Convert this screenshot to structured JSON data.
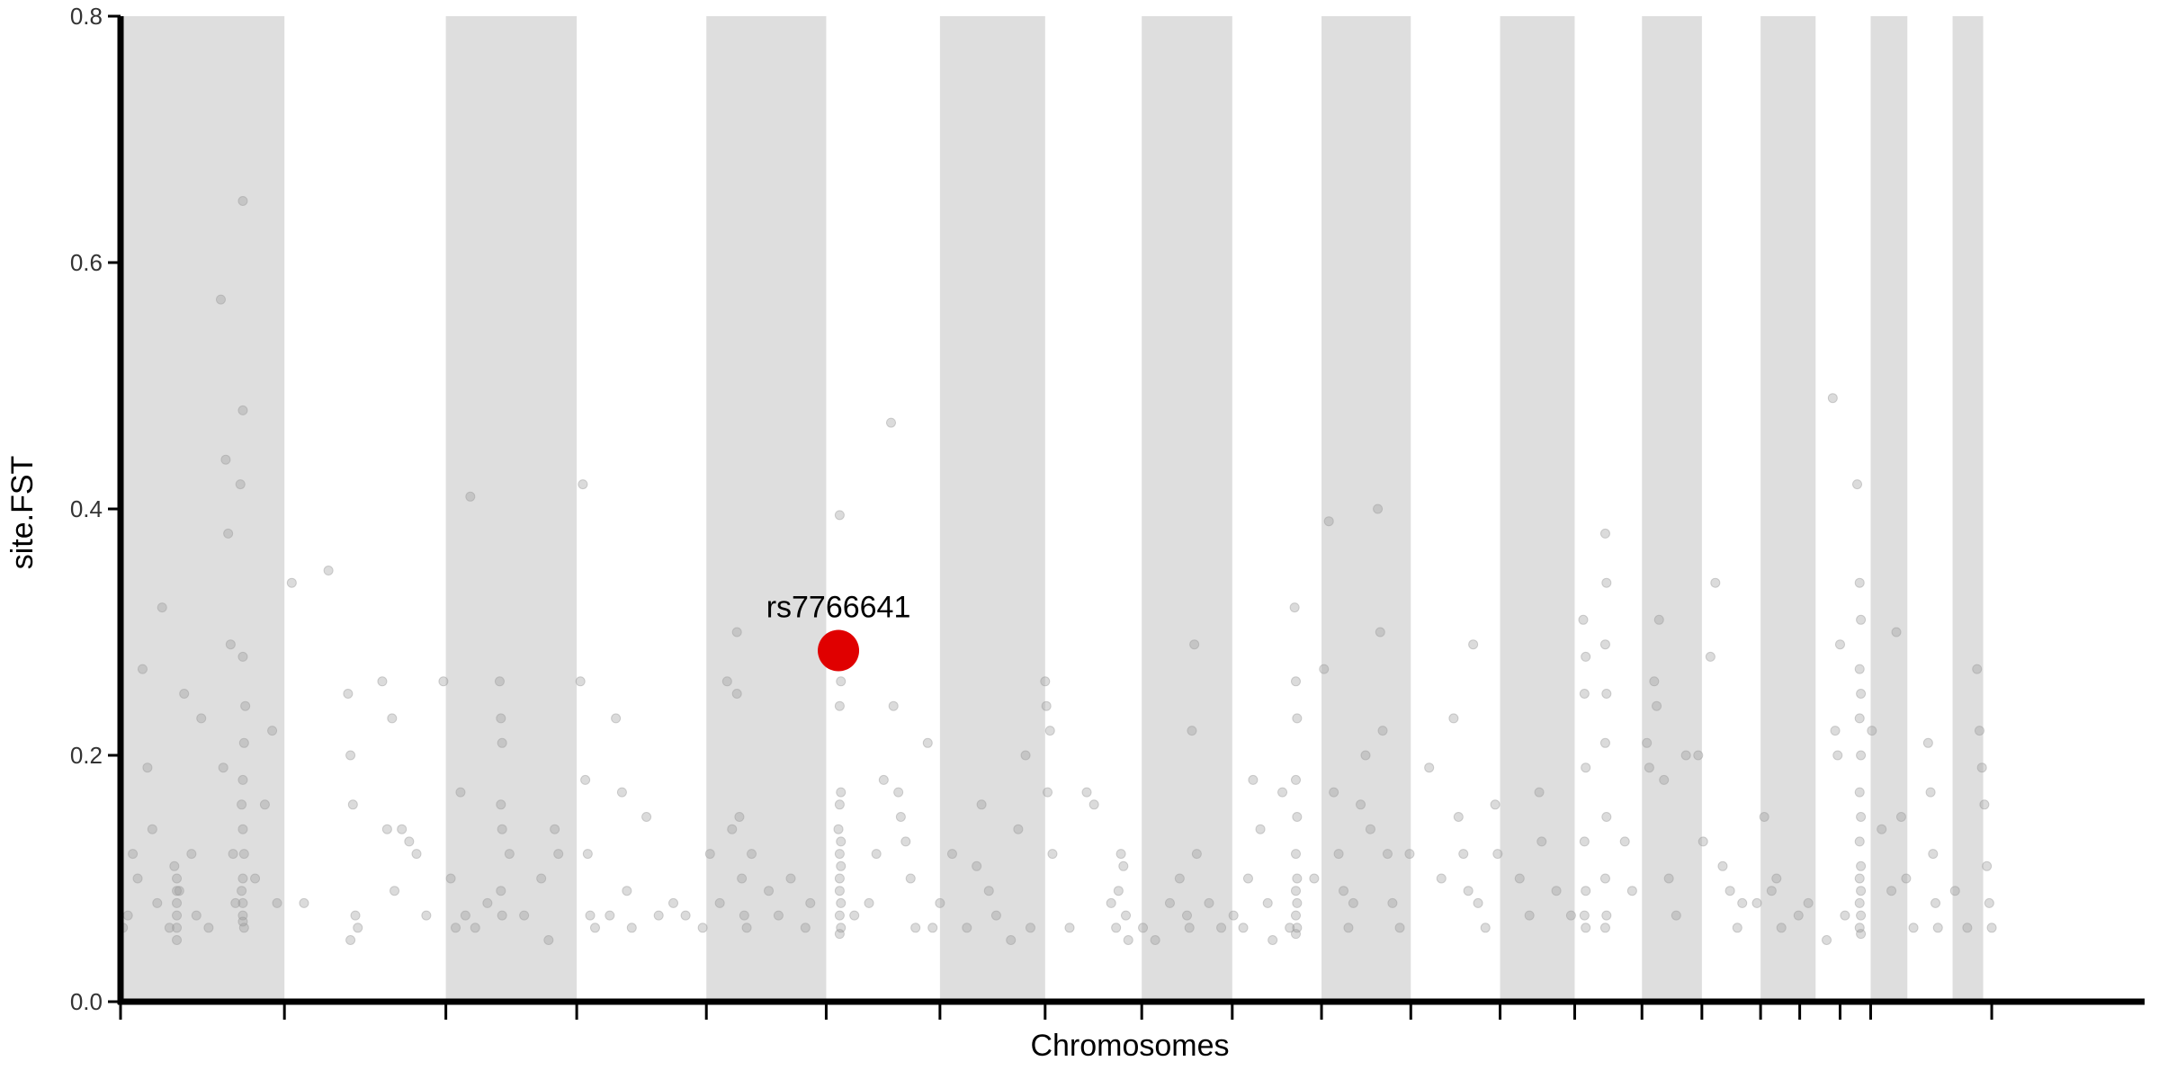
{
  "chart_data": {
    "type": "scatter",
    "title": "",
    "xlabel": "Chromosomes",
    "ylabel": "site.FST",
    "xlim": [
      0,
      1655
    ],
    "ylim": [
      0,
      0.8
    ],
    "yticks": [
      0.0,
      0.2,
      0.4,
      0.6,
      0.8
    ],
    "ytick_labels": [
      "0.0",
      "0.2",
      "0.4",
      "0.6",
      "0.8"
    ],
    "grid": false,
    "legend": false,
    "chromosome_boundaries": [
      0,
      134,
      266,
      373,
      479,
      577,
      670,
      756,
      835,
      909,
      982,
      1055,
      1128,
      1189,
      1244,
      1293,
      1341,
      1373,
      1406,
      1431,
      1530
    ],
    "shaded_bands": [
      [
        0,
        134
      ],
      [
        266,
        373
      ],
      [
        479,
        577
      ],
      [
        670,
        756
      ],
      [
        835,
        909
      ],
      [
        982,
        1055
      ],
      [
        1128,
        1189
      ],
      [
        1244,
        1293
      ],
      [
        1341,
        1386
      ],
      [
        1431,
        1461
      ],
      [
        1498,
        1523
      ]
    ],
    "point_color": "#999999",
    "band_color": "#dedede",
    "highlight_color": "#e00000",
    "highlight": {
      "label": "rs7766641",
      "x": 587,
      "y": 0.285
    },
    "points": [
      [
        2,
        0.06
      ],
      [
        6,
        0.07
      ],
      [
        10,
        0.12
      ],
      [
        14,
        0.1
      ],
      [
        18,
        0.27
      ],
      [
        22,
        0.19
      ],
      [
        26,
        0.14
      ],
      [
        30,
        0.08
      ],
      [
        34,
        0.32
      ],
      [
        40,
        0.06
      ],
      [
        44,
        0.11
      ],
      [
        48,
        0.09
      ],
      [
        52,
        0.25
      ],
      [
        58,
        0.12
      ],
      [
        62,
        0.07
      ],
      [
        66,
        0.23
      ],
      [
        72,
        0.06
      ],
      [
        82,
        0.57
      ],
      [
        84,
        0.19
      ],
      [
        86,
        0.44
      ],
      [
        88,
        0.38
      ],
      [
        90,
        0.29
      ],
      [
        92,
        0.12
      ],
      [
        94,
        0.08
      ],
      [
        100,
        0.65
      ],
      [
        100,
        0.48
      ],
      [
        98,
        0.42
      ],
      [
        100,
        0.28
      ],
      [
        102,
        0.24
      ],
      [
        101,
        0.21
      ],
      [
        100,
        0.18
      ],
      [
        99,
        0.16
      ],
      [
        100,
        0.14
      ],
      [
        101,
        0.12
      ],
      [
        100,
        0.1
      ],
      [
        99,
        0.09
      ],
      [
        100,
        0.08
      ],
      [
        100,
        0.07
      ],
      [
        101,
        0.06
      ],
      [
        100,
        0.065
      ],
      [
        46,
        0.05
      ],
      [
        46,
        0.06
      ],
      [
        46,
        0.07
      ],
      [
        46,
        0.08
      ],
      [
        46,
        0.09
      ],
      [
        46,
        0.1
      ],
      [
        110,
        0.1
      ],
      [
        118,
        0.16
      ],
      [
        124,
        0.22
      ],
      [
        128,
        0.08
      ],
      [
        140,
        0.34
      ],
      [
        150,
        0.08
      ],
      [
        170,
        0.35
      ],
      [
        186,
        0.25
      ],
      [
        188,
        0.2
      ],
      [
        190,
        0.16
      ],
      [
        192,
        0.07
      ],
      [
        194,
        0.06
      ],
      [
        188,
        0.05
      ],
      [
        214,
        0.26
      ],
      [
        218,
        0.14
      ],
      [
        222,
        0.23
      ],
      [
        224,
        0.09
      ],
      [
        230,
        0.14
      ],
      [
        236,
        0.13
      ],
      [
        242,
        0.12
      ],
      [
        250,
        0.07
      ],
      [
        264,
        0.26
      ],
      [
        270,
        0.1
      ],
      [
        274,
        0.06
      ],
      [
        278,
        0.17
      ],
      [
        282,
        0.07
      ],
      [
        286,
        0.41
      ],
      [
        290,
        0.06
      ],
      [
        300,
        0.08
      ],
      [
        310,
        0.26
      ],
      [
        311,
        0.23
      ],
      [
        312,
        0.21
      ],
      [
        311,
        0.16
      ],
      [
        312,
        0.14
      ],
      [
        311,
        0.09
      ],
      [
        312,
        0.07
      ],
      [
        318,
        0.12
      ],
      [
        330,
        0.07
      ],
      [
        344,
        0.1
      ],
      [
        350,
        0.05
      ],
      [
        355,
        0.14
      ],
      [
        358,
        0.12
      ],
      [
        378,
        0.42
      ],
      [
        376,
        0.26
      ],
      [
        380,
        0.18
      ],
      [
        382,
        0.12
      ],
      [
        384,
        0.07
      ],
      [
        388,
        0.06
      ],
      [
        400,
        0.07
      ],
      [
        405,
        0.23
      ],
      [
        410,
        0.17
      ],
      [
        414,
        0.09
      ],
      [
        418,
        0.06
      ],
      [
        430,
        0.15
      ],
      [
        440,
        0.07
      ],
      [
        452,
        0.08
      ],
      [
        462,
        0.07
      ],
      [
        476,
        0.06
      ],
      [
        482,
        0.12
      ],
      [
        490,
        0.08
      ],
      [
        496,
        0.26
      ],
      [
        500,
        0.14
      ],
      [
        504,
        0.3
      ],
      [
        504,
        0.25
      ],
      [
        506,
        0.15
      ],
      [
        508,
        0.1
      ],
      [
        510,
        0.07
      ],
      [
        512,
        0.06
      ],
      [
        516,
        0.12
      ],
      [
        530,
        0.09
      ],
      [
        538,
        0.07
      ],
      [
        548,
        0.1
      ],
      [
        560,
        0.06
      ],
      [
        564,
        0.08
      ],
      [
        588,
        0.395
      ],
      [
        589,
        0.26
      ],
      [
        588,
        0.24
      ],
      [
        589,
        0.17
      ],
      [
        588,
        0.16
      ],
      [
        587,
        0.14
      ],
      [
        589,
        0.13
      ],
      [
        588,
        0.12
      ],
      [
        589,
        0.11
      ],
      [
        588,
        0.1
      ],
      [
        588,
        0.09
      ],
      [
        589,
        0.08
      ],
      [
        588,
        0.07
      ],
      [
        589,
        0.06
      ],
      [
        588,
        0.055
      ],
      [
        600,
        0.07
      ],
      [
        612,
        0.08
      ],
      [
        618,
        0.12
      ],
      [
        624,
        0.18
      ],
      [
        630,
        0.47
      ],
      [
        632,
        0.24
      ],
      [
        636,
        0.17
      ],
      [
        638,
        0.15
      ],
      [
        642,
        0.13
      ],
      [
        646,
        0.1
      ],
      [
        650,
        0.06
      ],
      [
        660,
        0.21
      ],
      [
        664,
        0.06
      ],
      [
        670,
        0.08
      ],
      [
        680,
        0.12
      ],
      [
        692,
        0.06
      ],
      [
        700,
        0.11
      ],
      [
        704,
        0.16
      ],
      [
        710,
        0.09
      ],
      [
        716,
        0.07
      ],
      [
        728,
        0.05
      ],
      [
        734,
        0.14
      ],
      [
        740,
        0.2
      ],
      [
        744,
        0.06
      ],
      [
        756,
        0.26
      ],
      [
        757,
        0.24
      ],
      [
        758,
        0.17
      ],
      [
        760,
        0.22
      ],
      [
        762,
        0.12
      ],
      [
        776,
        0.06
      ],
      [
        790,
        0.17
      ],
      [
        796,
        0.16
      ],
      [
        810,
        0.08
      ],
      [
        814,
        0.06
      ],
      [
        816,
        0.09
      ],
      [
        818,
        0.12
      ],
      [
        820,
        0.11
      ],
      [
        822,
        0.07
      ],
      [
        824,
        0.05
      ],
      [
        836,
        0.06
      ],
      [
        846,
        0.05
      ],
      [
        858,
        0.08
      ],
      [
        866,
        0.1
      ],
      [
        872,
        0.07
      ],
      [
        874,
        0.06
      ],
      [
        876,
        0.22
      ],
      [
        878,
        0.29
      ],
      [
        880,
        0.12
      ],
      [
        890,
        0.08
      ],
      [
        900,
        0.06
      ],
      [
        910,
        0.07
      ],
      [
        918,
        0.06
      ],
      [
        922,
        0.1
      ],
      [
        926,
        0.18
      ],
      [
        932,
        0.14
      ],
      [
        938,
        0.08
      ],
      [
        942,
        0.05
      ],
      [
        950,
        0.17
      ],
      [
        956,
        0.06
      ],
      [
        960,
        0.32
      ],
      [
        961,
        0.26
      ],
      [
        962,
        0.23
      ],
      [
        961,
        0.18
      ],
      [
        962,
        0.15
      ],
      [
        961,
        0.12
      ],
      [
        962,
        0.1
      ],
      [
        961,
        0.09
      ],
      [
        962,
        0.08
      ],
      [
        961,
        0.07
      ],
      [
        962,
        0.06
      ],
      [
        961,
        0.055
      ],
      [
        976,
        0.1
      ],
      [
        984,
        0.27
      ],
      [
        988,
        0.39
      ],
      [
        992,
        0.17
      ],
      [
        996,
        0.12
      ],
      [
        1000,
        0.09
      ],
      [
        1004,
        0.06
      ],
      [
        1008,
        0.08
      ],
      [
        1014,
        0.16
      ],
      [
        1018,
        0.2
      ],
      [
        1022,
        0.14
      ],
      [
        1028,
        0.4
      ],
      [
        1030,
        0.3
      ],
      [
        1032,
        0.22
      ],
      [
        1036,
        0.12
      ],
      [
        1040,
        0.08
      ],
      [
        1046,
        0.06
      ],
      [
        1054,
        0.12
      ],
      [
        1070,
        0.19
      ],
      [
        1080,
        0.1
      ],
      [
        1090,
        0.23
      ],
      [
        1094,
        0.15
      ],
      [
        1098,
        0.12
      ],
      [
        1102,
        0.09
      ],
      [
        1106,
        0.29
      ],
      [
        1110,
        0.08
      ],
      [
        1116,
        0.06
      ],
      [
        1124,
        0.16
      ],
      [
        1126,
        0.12
      ],
      [
        1144,
        0.1
      ],
      [
        1152,
        0.07
      ],
      [
        1160,
        0.17
      ],
      [
        1162,
        0.13
      ],
      [
        1174,
        0.09
      ],
      [
        1186,
        0.07
      ],
      [
        1196,
        0.31
      ],
      [
        1198,
        0.28
      ],
      [
        1197,
        0.25
      ],
      [
        1198,
        0.19
      ],
      [
        1197,
        0.13
      ],
      [
        1198,
        0.09
      ],
      [
        1197,
        0.07
      ],
      [
        1198,
        0.06
      ],
      [
        1214,
        0.38
      ],
      [
        1215,
        0.34
      ],
      [
        1214,
        0.29
      ],
      [
        1215,
        0.25
      ],
      [
        1214,
        0.21
      ],
      [
        1215,
        0.15
      ],
      [
        1214,
        0.1
      ],
      [
        1215,
        0.07
      ],
      [
        1214,
        0.06
      ],
      [
        1230,
        0.13
      ],
      [
        1236,
        0.09
      ],
      [
        1248,
        0.21
      ],
      [
        1250,
        0.19
      ],
      [
        1254,
        0.26
      ],
      [
        1256,
        0.24
      ],
      [
        1258,
        0.31
      ],
      [
        1262,
        0.18
      ],
      [
        1266,
        0.1
      ],
      [
        1272,
        0.07
      ],
      [
        1280,
        0.2
      ],
      [
        1290,
        0.2
      ],
      [
        1294,
        0.13
      ],
      [
        1300,
        0.28
      ],
      [
        1304,
        0.34
      ],
      [
        1310,
        0.11
      ],
      [
        1316,
        0.09
      ],
      [
        1322,
        0.06
      ],
      [
        1326,
        0.08
      ],
      [
        1338,
        0.08
      ],
      [
        1344,
        0.15
      ],
      [
        1350,
        0.09
      ],
      [
        1354,
        0.1
      ],
      [
        1358,
        0.06
      ],
      [
        1372,
        0.07
      ],
      [
        1380,
        0.08
      ],
      [
        1395,
        0.05
      ],
      [
        1400,
        0.49
      ],
      [
        1402,
        0.22
      ],
      [
        1404,
        0.2
      ],
      [
        1406,
        0.29
      ],
      [
        1410,
        0.07
      ],
      [
        1420,
        0.42
      ],
      [
        1422,
        0.34
      ],
      [
        1423,
        0.31
      ],
      [
        1422,
        0.27
      ],
      [
        1423,
        0.25
      ],
      [
        1422,
        0.23
      ],
      [
        1423,
        0.2
      ],
      [
        1422,
        0.17
      ],
      [
        1423,
        0.15
      ],
      [
        1422,
        0.13
      ],
      [
        1423,
        0.11
      ],
      [
        1422,
        0.1
      ],
      [
        1423,
        0.09
      ],
      [
        1422,
        0.08
      ],
      [
        1423,
        0.07
      ],
      [
        1422,
        0.06
      ],
      [
        1423,
        0.055
      ],
      [
        1432,
        0.22
      ],
      [
        1440,
        0.14
      ],
      [
        1448,
        0.09
      ],
      [
        1452,
        0.3
      ],
      [
        1456,
        0.15
      ],
      [
        1460,
        0.1
      ],
      [
        1466,
        0.06
      ],
      [
        1478,
        0.21
      ],
      [
        1480,
        0.17
      ],
      [
        1482,
        0.12
      ],
      [
        1484,
        0.08
      ],
      [
        1486,
        0.06
      ],
      [
        1500,
        0.09
      ],
      [
        1510,
        0.06
      ],
      [
        1518,
        0.27
      ],
      [
        1520,
        0.22
      ],
      [
        1522,
        0.19
      ],
      [
        1524,
        0.16
      ],
      [
        1526,
        0.11
      ],
      [
        1528,
        0.08
      ],
      [
        1530,
        0.06
      ]
    ]
  }
}
